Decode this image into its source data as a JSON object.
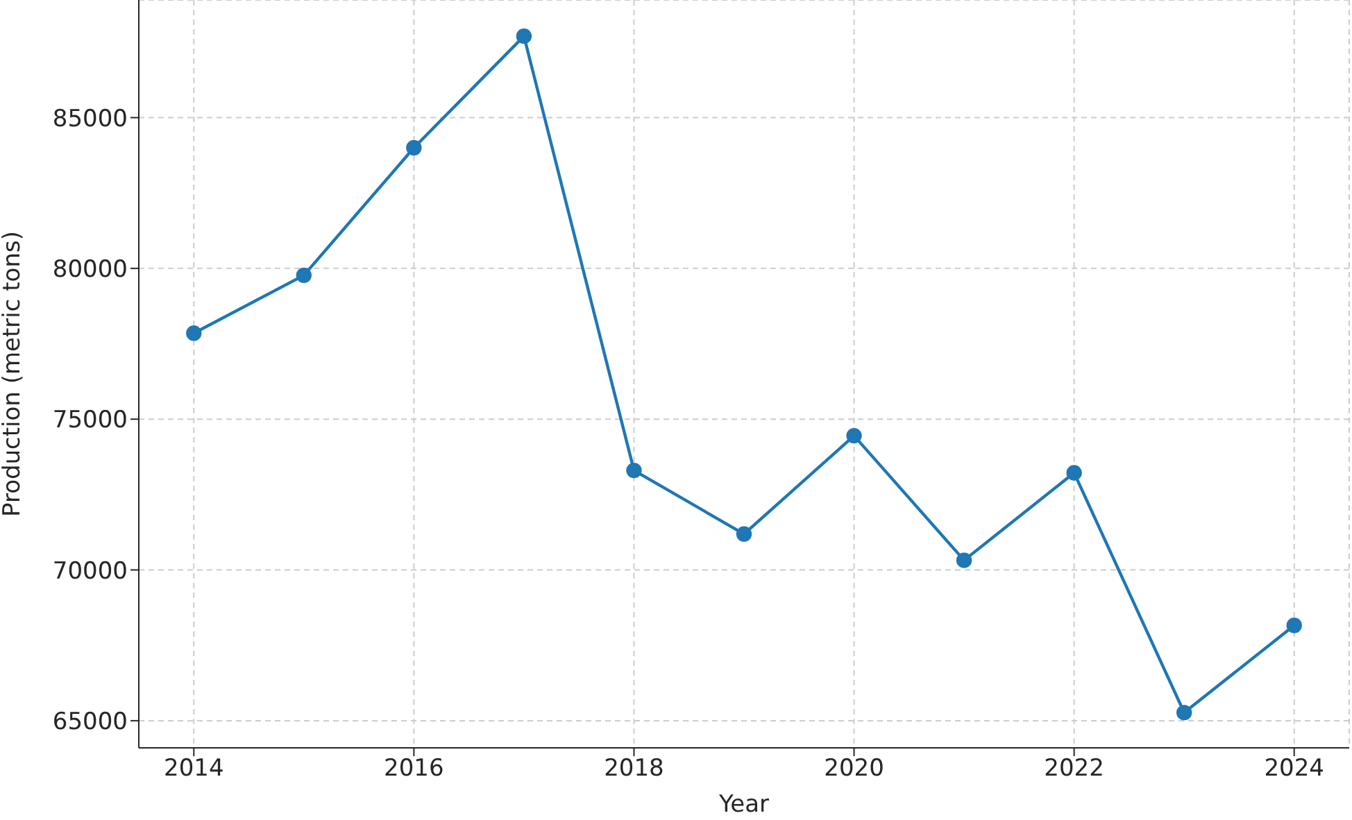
{
  "chart_data": {
    "type": "line",
    "xlabel": "Year",
    "ylabel": "Production (metric tons)",
    "x": [
      2014,
      2015,
      2016,
      2017,
      2018,
      2019,
      2020,
      2021,
      2022,
      2023,
      2024
    ],
    "series": [
      {
        "color": "#1f77b4",
        "values": [
          77850,
          79770,
          84000,
          87700,
          73300,
          71190,
          74450,
          70320,
          73220,
          65270,
          68160
        ]
      }
    ],
    "xlim": [
      2013.5,
      2024.5
    ],
    "xticks": [
      2014,
      2016,
      2018,
      2020,
      2022,
      2024
    ],
    "ylim": [
      64100,
      88900
    ],
    "yticks": [
      65000,
      70000,
      75000,
      80000,
      85000
    ],
    "grid": true,
    "marker": "circle",
    "line_style": "solid"
  }
}
